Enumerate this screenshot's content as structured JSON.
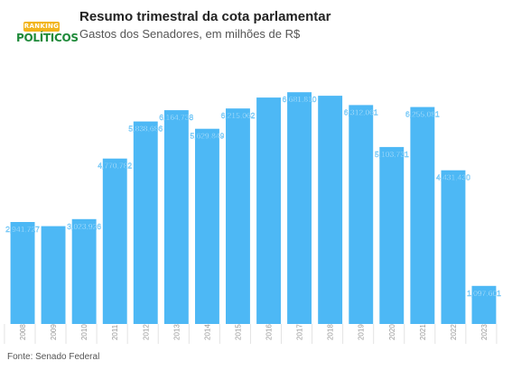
{
  "header": {
    "logo_top": "RANKING",
    "logo_bottom": "POLÍTICOS",
    "title": "Resumo trimestral da cota parlamentar",
    "subtitle": "Gastos dos Senadores, em milhões de R$"
  },
  "footer": {
    "source": "Fonte: Senado Federal"
  },
  "colors": {
    "bar": "#4db8f5",
    "label_text": "#ffffff",
    "tick_text": "#999999",
    "logo_yellow": "#f2b51c",
    "logo_green": "#1f8a3a"
  },
  "chart_data": {
    "type": "bar",
    "title": "Resumo trimestral da cota parlamentar",
    "subtitle": "Gastos dos Senadores, em milhões de R$",
    "xlabel": "",
    "ylabel": "",
    "categories": [
      "2008",
      "2009",
      "2010",
      "2011",
      "2012",
      "2013",
      "2014",
      "2015",
      "2016",
      "2017",
      "2018",
      "2019",
      "2020",
      "2021",
      "2022",
      "2023"
    ],
    "values": [
      2.941727,
      2.82,
      3.023926,
      4.770782,
      5.838686,
      6.164738,
      5.629849,
      6.215062,
      6.53,
      6.68181,
      6.58,
      6.312061,
      5.103731,
      6.255081,
      4.43143,
      1.097601
    ],
    "data_labels": [
      "2,941,727",
      "",
      "3,023,926",
      "4,770,782",
      "5,838,686",
      "6,164,738",
      "5,629,849",
      "6,215,062",
      "",
      "6,681,810",
      "",
      "6,312,061",
      "5,103,731",
      "6,255,081",
      "4,431,430",
      "1,097,601"
    ],
    "ylim": [
      0,
      7.0
    ],
    "grid": false,
    "legend": "none"
  }
}
